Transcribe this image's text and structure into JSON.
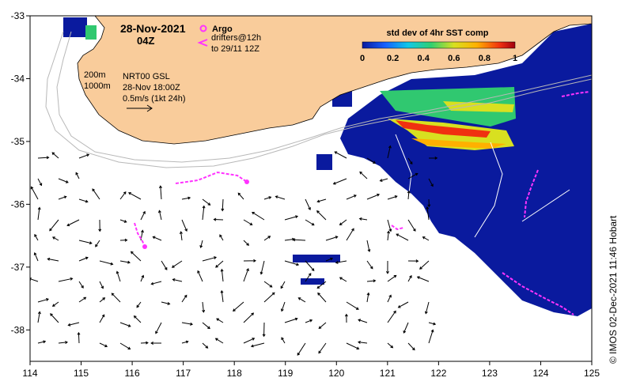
{
  "map": {
    "date_line": "28-Nov-2021",
    "hour_line": "04Z",
    "argo_label": "Argo",
    "drifters_line1": "drifters@12h",
    "drifters_line2": "to 29/11 12Z",
    "depth_200": "200m",
    "depth_1000": "1000m",
    "product_line1": "NRT00 GSL",
    "product_line2": "28-Nov 18:00Z",
    "scale_line": "0.5m/s (1kt 24h)",
    "credit": "© IMOS 02-Dec-2021 11:46 Hobart",
    "lon_ticks": [
      "114",
      "115",
      "116",
      "117",
      "118",
      "119",
      "120",
      "121",
      "122",
      "123",
      "124",
      "125"
    ],
    "lat_ticks": [
      "-33",
      "-34",
      "-35",
      "-36",
      "-37",
      "-38"
    ],
    "lon_range": [
      114,
      125
    ],
    "lat_range": [
      -38.5,
      -33
    ]
  },
  "colorbar": {
    "title": "std dev of 4hr SST comp",
    "ticks": [
      "0",
      "0.2",
      "0.4",
      "0.6",
      "0.8",
      "1"
    ],
    "range": [
      0,
      1
    ]
  },
  "colors": {
    "land": "#f9cc9b",
    "ocean": "#ffffff",
    "sst_base": "#0a1a9e",
    "argo": "#ff33ff",
    "drifter": "#ff33ff"
  }
}
